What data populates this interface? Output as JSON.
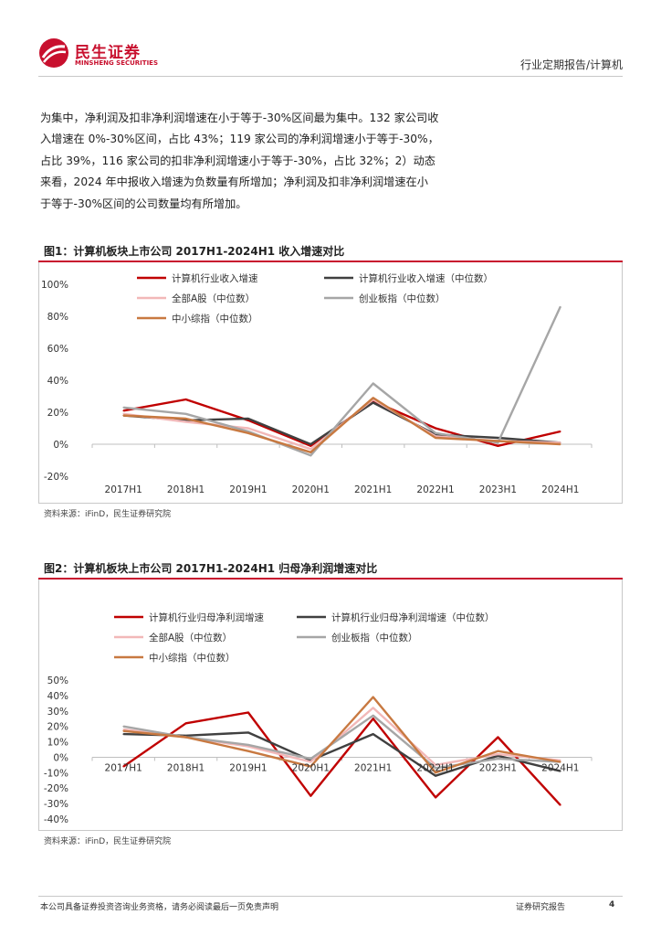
{
  "header": {
    "logo_cn": "民生证券",
    "logo_en": "MINSHENG SECURITIES",
    "right_text": "行业定期报告/计算机",
    "brand_color": "#c8102e"
  },
  "paragraph": [
    "为集中，净利润及扣非净利润增速在小于等于-30%区间最为集中。132 家公司收",
    "入增速在 0%-30%区间，占比 43%；119 家公司的净利润增速小于等于-30%，",
    "占比 39%，116 家公司的扣非净利润增速小于等于-30%，占比 32%；2）动态",
    "来看，2024 年中报收入增速为负数量有所增加；净利润及扣非净利润增速在小",
    "于等于-30%区间的公司数量均有所增加。"
  ],
  "figure1": {
    "title": "图1：计算机板块上市公司 2017H1-2024H1 收入增速对比",
    "source": "资料来源：iFinD，民生证券研究院"
  },
  "figure2": {
    "title": "图2：计算机板块上市公司 2017H1-2024H1 归母净利润增速对比",
    "source": "资料来源：iFinD，民生证券研究院"
  },
  "chart_data": [
    {
      "type": "line",
      "title": "图1：计算机板块上市公司 2017H1-2024H1 收入增速对比",
      "x": [
        "2017H1",
        "2018H1",
        "2019H1",
        "2020H1",
        "2021H1",
        "2022H1",
        "2023H1",
        "2024H1"
      ],
      "ylim": [
        -20,
        100
      ],
      "yticks": [
        -20,
        0,
        20,
        40,
        60,
        80,
        100
      ],
      "ytick_labels": [
        "-20%",
        "0%",
        "20%",
        "40%",
        "60%",
        "80%",
        "100%"
      ],
      "legend_placement": "top",
      "grid": false,
      "series": [
        {
          "name": "计算机行业收入增速",
          "color": "#c00000",
          "values": [
            21,
            28,
            15,
            -1,
            27,
            10,
            -1,
            8
          ]
        },
        {
          "name": "计算机行业收入增速（中位数）",
          "color": "#404040",
          "values": [
            18,
            15,
            16,
            0,
            26,
            6,
            4,
            1
          ]
        },
        {
          "name": "全部A股（中位数）",
          "color": "#f2b8b8",
          "values": [
            19,
            14,
            10,
            -3,
            28,
            5,
            2,
            1
          ]
        },
        {
          "name": "创业板指（中位数）",
          "color": "#a6a6a6",
          "values": [
            23,
            19,
            8,
            -7,
            38,
            7,
            1,
            86
          ]
        },
        {
          "name": "中小综指（中位数）",
          "color": "#c87941",
          "values": [
            18,
            16,
            7,
            -5,
            29,
            4,
            2,
            0
          ]
        }
      ]
    },
    {
      "type": "line",
      "title": "图2：计算机板块上市公司 2017H1-2024H1 归母净利润增速对比",
      "x": [
        "2017H1",
        "2018H1",
        "2019H1",
        "2020H1",
        "2021H1",
        "2022H1",
        "2023H1",
        "2024H1"
      ],
      "ylim": [
        -40,
        50
      ],
      "yticks": [
        -40,
        -30,
        -20,
        -10,
        0,
        10,
        20,
        30,
        40,
        50
      ],
      "ytick_labels": [
        "-40%",
        "-30%",
        "-20%",
        "-10%",
        "0%",
        "10%",
        "20%",
        "30%",
        "40%",
        "50%"
      ],
      "legend_placement": "top",
      "grid": false,
      "series": [
        {
          "name": "计算机行业归母净利润增速",
          "color": "#c00000",
          "values": [
            -6,
            22,
            29,
            -25,
            25,
            -26,
            13,
            -31
          ]
        },
        {
          "name": "计算机行业归母净利润增速（中位数）",
          "color": "#404040",
          "values": [
            15,
            14,
            16,
            -2,
            15,
            -12,
            1,
            -9
          ]
        },
        {
          "name": "全部A股（中位数）",
          "color": "#f2b8b8",
          "values": [
            18,
            13,
            7,
            -3,
            32,
            -5,
            2,
            -2
          ]
        },
        {
          "name": "创业板指（中位数）",
          "color": "#a6a6a6",
          "values": [
            20,
            13,
            8,
            -1,
            27,
            -7,
            -1,
            -3
          ]
        },
        {
          "name": "中小综指（中位数）",
          "color": "#c87941",
          "values": [
            17,
            13,
            4,
            -6,
            39,
            -10,
            4,
            -3
          ]
        }
      ]
    }
  ],
  "footer": {
    "disclaimer": "本公司具备证券投资咨询业务资格，请务必阅读最后一页免责声明",
    "report_type": "证券研究报告",
    "page_number": "4"
  }
}
